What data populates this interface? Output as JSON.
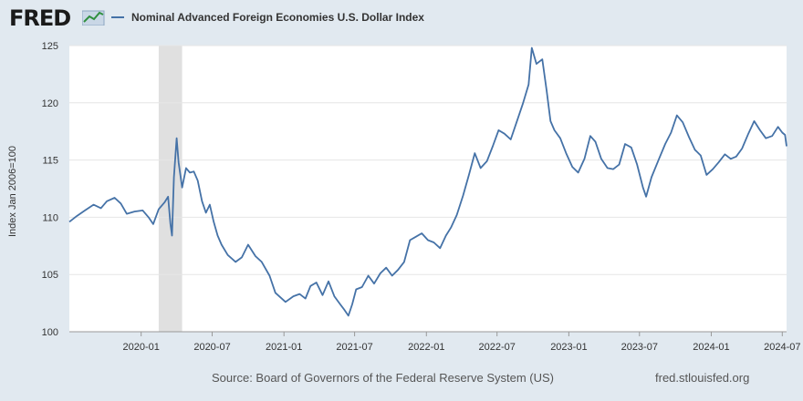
{
  "header": {
    "logo_text": "FRED",
    "logo_icon": "line-chart-icon"
  },
  "footer": {
    "source": "Source: Board of Governors of the Federal Reserve System (US)",
    "url": "fred.stlouisfed.org"
  },
  "colors": {
    "page_background": "#e1e9f0",
    "plot_background": "#ffffff",
    "series_line": "#4572a7",
    "recession_band": "#e0e0e0",
    "gridline": "#e6e6e6"
  },
  "chart_data": {
    "type": "line",
    "title": "",
    "xlabel": "",
    "ylabel": "Index Jan 2006=100",
    "ylim": [
      100,
      125
    ],
    "xlim": [
      "2019-07-01",
      "2024-07-12"
    ],
    "yticks": [
      100,
      105,
      110,
      115,
      120,
      125
    ],
    "xticks": [
      "2020-01",
      "2020-07",
      "2021-01",
      "2021-07",
      "2022-01",
      "2022-07",
      "2023-01",
      "2023-07",
      "2024-01",
      "2024-07"
    ],
    "grid": "horizontal",
    "legend_position": "top-left",
    "recession_shading": [
      {
        "start": "2020-02-15",
        "end": "2020-04-15"
      }
    ],
    "series": [
      {
        "name": "Nominal Advanced Foreign Economies U.S. Dollar Index",
        "points": [
          [
            "2019-07-01",
            109.6
          ],
          [
            "2019-07-20",
            110.1
          ],
          [
            "2019-08-10",
            110.6
          ],
          [
            "2019-09-01",
            111.1
          ],
          [
            "2019-09-20",
            110.8
          ],
          [
            "2019-10-05",
            111.4
          ],
          [
            "2019-10-25",
            111.7
          ],
          [
            "2019-11-10",
            111.2
          ],
          [
            "2019-11-25",
            110.3
          ],
          [
            "2019-12-15",
            110.5
          ],
          [
            "2020-01-05",
            110.6
          ],
          [
            "2020-01-20",
            110.0
          ],
          [
            "2020-02-01",
            109.4
          ],
          [
            "2020-02-15",
            110.7
          ],
          [
            "2020-03-01",
            111.3
          ],
          [
            "2020-03-10",
            111.8
          ],
          [
            "2020-03-16",
            109.4
          ],
          [
            "2020-03-20",
            108.4
          ],
          [
            "2020-03-25",
            113.5
          ],
          [
            "2020-04-01",
            116.9
          ],
          [
            "2020-04-06",
            114.8
          ],
          [
            "2020-04-15",
            112.6
          ],
          [
            "2020-04-25",
            114.3
          ],
          [
            "2020-05-05",
            113.9
          ],
          [
            "2020-05-15",
            114.0
          ],
          [
            "2020-05-25",
            113.2
          ],
          [
            "2020-06-05",
            111.4
          ],
          [
            "2020-06-15",
            110.4
          ],
          [
            "2020-06-25",
            111.1
          ],
          [
            "2020-07-05",
            109.6
          ],
          [
            "2020-07-15",
            108.4
          ],
          [
            "2020-07-25",
            107.6
          ],
          [
            "2020-08-10",
            106.7
          ],
          [
            "2020-08-30",
            106.1
          ],
          [
            "2020-09-15",
            106.5
          ],
          [
            "2020-10-01",
            107.6
          ],
          [
            "2020-10-20",
            106.6
          ],
          [
            "2020-11-05",
            106.1
          ],
          [
            "2020-11-25",
            104.9
          ],
          [
            "2020-12-10",
            103.4
          ],
          [
            "2021-01-05",
            102.6
          ],
          [
            "2021-01-25",
            103.1
          ],
          [
            "2021-02-10",
            103.3
          ],
          [
            "2021-02-25",
            102.9
          ],
          [
            "2021-03-10",
            104.0
          ],
          [
            "2021-03-25",
            104.3
          ],
          [
            "2021-04-10",
            103.2
          ],
          [
            "2021-04-25",
            104.4
          ],
          [
            "2021-05-10",
            103.1
          ],
          [
            "2021-05-25",
            102.4
          ],
          [
            "2021-06-05",
            101.9
          ],
          [
            "2021-06-15",
            101.4
          ],
          [
            "2021-06-25",
            102.4
          ],
          [
            "2021-07-05",
            103.7
          ],
          [
            "2021-07-20",
            103.9
          ],
          [
            "2021-08-05",
            104.9
          ],
          [
            "2021-08-20",
            104.2
          ],
          [
            "2021-09-05",
            105.1
          ],
          [
            "2021-09-20",
            105.6
          ],
          [
            "2021-10-05",
            104.9
          ],
          [
            "2021-10-20",
            105.4
          ],
          [
            "2021-11-05",
            106.1
          ],
          [
            "2021-11-20",
            108.0
          ],
          [
            "2021-12-05",
            108.3
          ],
          [
            "2021-12-20",
            108.6
          ],
          [
            "2022-01-05",
            108.0
          ],
          [
            "2022-01-20",
            107.8
          ],
          [
            "2022-02-05",
            107.3
          ],
          [
            "2022-02-20",
            108.4
          ],
          [
            "2022-03-05",
            109.1
          ],
          [
            "2022-03-20",
            110.2
          ],
          [
            "2022-04-05",
            111.9
          ],
          [
            "2022-04-20",
            113.7
          ],
          [
            "2022-05-05",
            115.6
          ],
          [
            "2022-05-20",
            114.3
          ],
          [
            "2022-06-05",
            114.9
          ],
          [
            "2022-06-20",
            116.2
          ],
          [
            "2022-07-05",
            117.6
          ],
          [
            "2022-07-20",
            117.3
          ],
          [
            "2022-08-05",
            116.8
          ],
          [
            "2022-08-20",
            118.3
          ],
          [
            "2022-09-05",
            119.9
          ],
          [
            "2022-09-20",
            121.6
          ],
          [
            "2022-09-28",
            124.8
          ],
          [
            "2022-10-10",
            123.4
          ],
          [
            "2022-10-25",
            123.8
          ],
          [
            "2022-11-05",
            121.1
          ],
          [
            "2022-11-15",
            118.4
          ],
          [
            "2022-11-25",
            117.6
          ],
          [
            "2022-12-10",
            116.9
          ],
          [
            "2022-12-25",
            115.6
          ],
          [
            "2023-01-10",
            114.4
          ],
          [
            "2023-01-25",
            113.9
          ],
          [
            "2023-02-10",
            115.1
          ],
          [
            "2023-02-25",
            117.1
          ],
          [
            "2023-03-10",
            116.6
          ],
          [
            "2023-03-25",
            115.1
          ],
          [
            "2023-04-10",
            114.3
          ],
          [
            "2023-04-25",
            114.2
          ],
          [
            "2023-05-10",
            114.6
          ],
          [
            "2023-05-25",
            116.4
          ],
          [
            "2023-06-10",
            116.1
          ],
          [
            "2023-06-25",
            114.6
          ],
          [
            "2023-07-10",
            112.6
          ],
          [
            "2023-07-18",
            111.8
          ],
          [
            "2023-08-01",
            113.5
          ],
          [
            "2023-08-20",
            115.1
          ],
          [
            "2023-09-05",
            116.4
          ],
          [
            "2023-09-20",
            117.4
          ],
          [
            "2023-10-05",
            118.9
          ],
          [
            "2023-10-20",
            118.3
          ],
          [
            "2023-11-05",
            117.0
          ],
          [
            "2023-11-20",
            115.9
          ],
          [
            "2023-12-05",
            115.4
          ],
          [
            "2023-12-20",
            113.7
          ],
          [
            "2024-01-05",
            114.2
          ],
          [
            "2024-01-20",
            114.8
          ],
          [
            "2024-02-05",
            115.5
          ],
          [
            "2024-02-20",
            115.1
          ],
          [
            "2024-03-05",
            115.3
          ],
          [
            "2024-03-20",
            116.0
          ],
          [
            "2024-04-05",
            117.3
          ],
          [
            "2024-04-20",
            118.4
          ],
          [
            "2024-05-05",
            117.6
          ],
          [
            "2024-05-20",
            116.9
          ],
          [
            "2024-06-05",
            117.1
          ],
          [
            "2024-06-20",
            117.9
          ],
          [
            "2024-07-01",
            117.4
          ],
          [
            "2024-07-08",
            117.2
          ],
          [
            "2024-07-12",
            116.2
          ]
        ]
      }
    ]
  }
}
